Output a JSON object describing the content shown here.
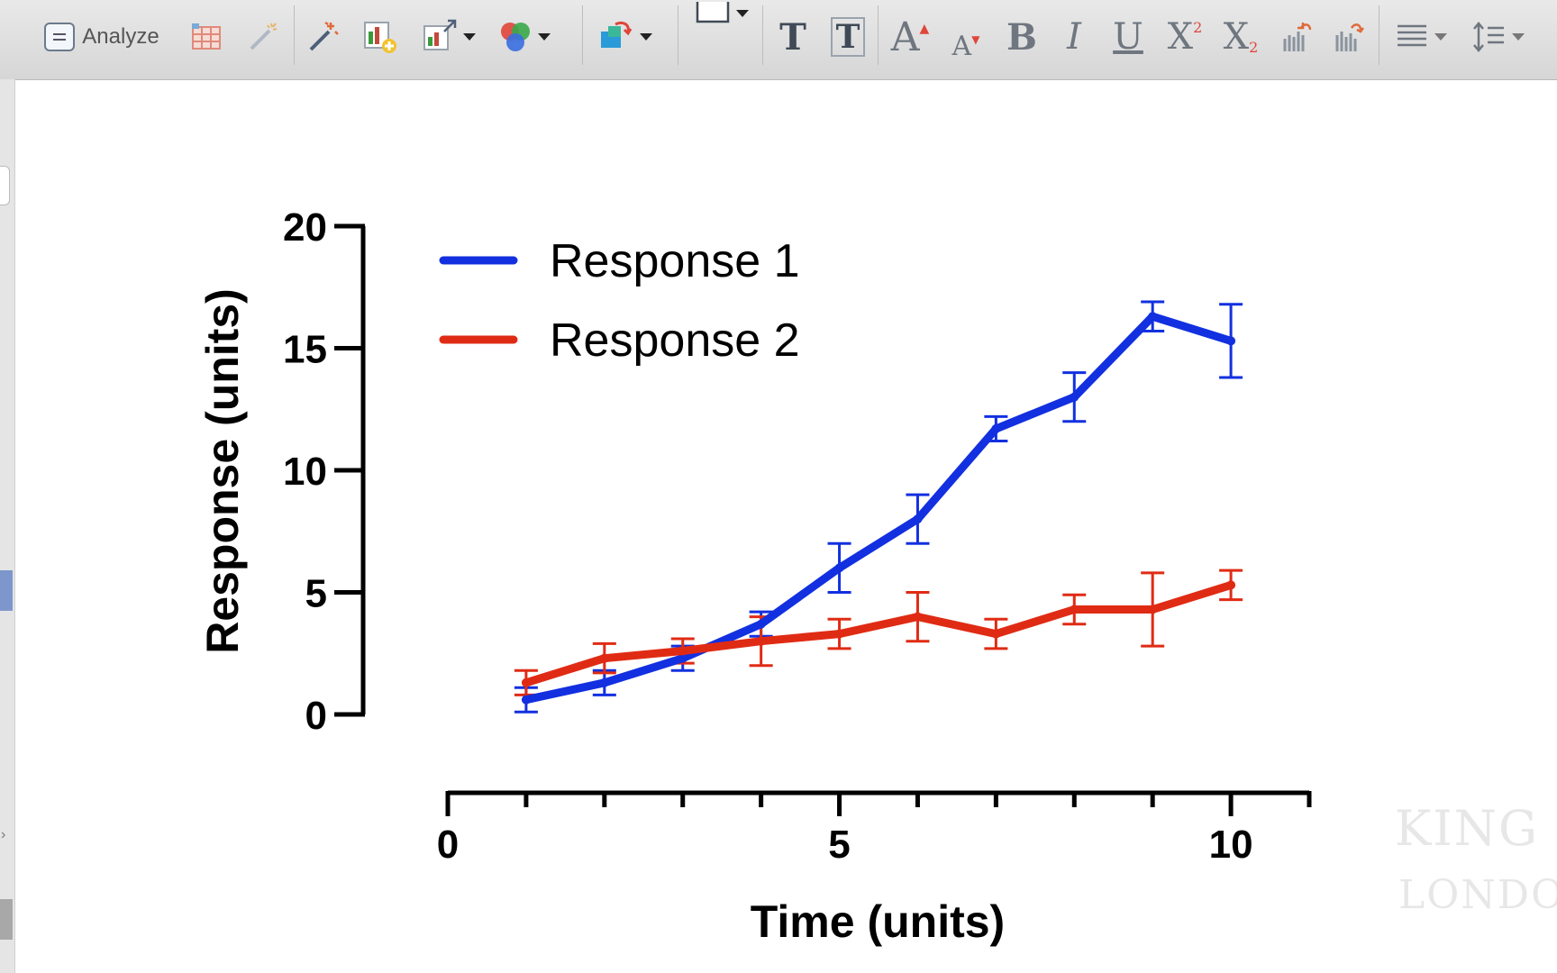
{
  "toolbar": {
    "analyze_label": "Analyze",
    "format_text_glyph": "T",
    "format_text_boxed_glyph": "T",
    "font_bigger_glyph": "A",
    "font_smaller_glyph": "A",
    "bold_glyph": "B",
    "italic_glyph": "I",
    "underline_glyph": "U",
    "superscript_glyph": "X",
    "superscript_mark": "2",
    "subscript_glyph": "X",
    "subscript_mark": "2",
    "icons": [
      "analyze-doc-icon",
      "new-table-icon",
      "magic-wand-icon",
      "wand-sparkle-icon",
      "add-graph-icon",
      "change-graph-icon",
      "color-scheme-icon",
      "layout-icon",
      "drawing-rectangle-icon",
      "bar-increase-icon",
      "bar-decrease-icon",
      "align-icon",
      "line-spacing-icon"
    ]
  },
  "watermark": {
    "line1": "KING",
    "line2": "LONDON"
  },
  "chart_data": {
    "type": "line",
    "xlabel": "Time (units)",
    "ylabel": "Response (units)",
    "xlim": [
      0,
      11
    ],
    "ylim": [
      0,
      20
    ],
    "x_ticks": [
      0,
      5,
      10
    ],
    "x_minor_ticks": [
      1,
      2,
      3,
      4,
      6,
      7,
      8,
      9,
      11
    ],
    "y_ticks": [
      0,
      5,
      10,
      15,
      20
    ],
    "grid": false,
    "legend_position": "top-left",
    "x": [
      1,
      2,
      3,
      4,
      5,
      6,
      7,
      8,
      9,
      10
    ],
    "series": [
      {
        "name": "Response 1",
        "color": "#1230e0",
        "values": [
          0.6,
          1.3,
          2.3,
          3.7,
          6.0,
          8.0,
          11.7,
          13.0,
          16.3,
          15.3
        ],
        "errors": [
          0.5,
          0.5,
          0.5,
          0.5,
          1.0,
          1.0,
          0.5,
          1.0,
          0.6,
          1.5
        ]
      },
      {
        "name": "Response 2",
        "color": "#e02b14",
        "values": [
          1.3,
          2.3,
          2.6,
          3.0,
          3.3,
          4.0,
          3.3,
          4.3,
          4.3,
          5.3
        ],
        "errors": [
          0.5,
          0.6,
          0.5,
          1.0,
          0.6,
          1.0,
          0.6,
          0.6,
          1.5,
          0.6
        ]
      }
    ]
  }
}
